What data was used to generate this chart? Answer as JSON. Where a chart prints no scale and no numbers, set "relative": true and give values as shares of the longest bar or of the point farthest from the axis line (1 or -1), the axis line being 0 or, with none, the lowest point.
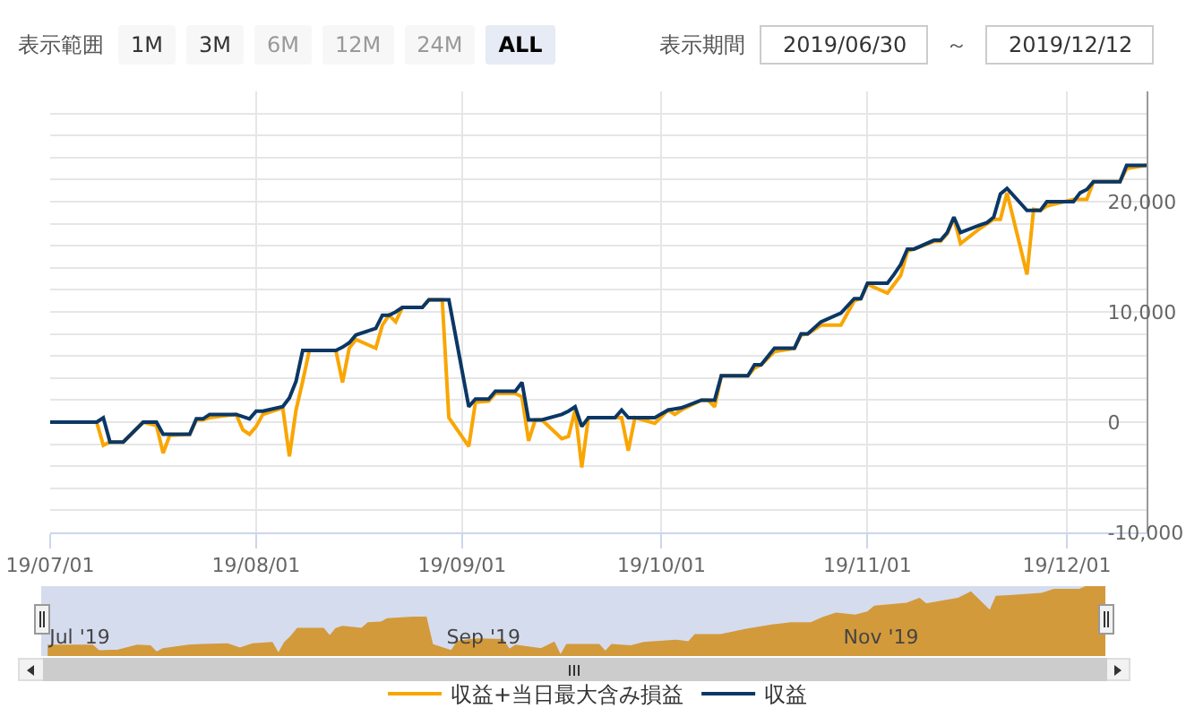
{
  "chart_data": [
    {
      "type": "line",
      "annotations": [
        "表示範囲",
        "1M",
        "3M",
        "6M",
        "12M",
        "24M",
        "ALL",
        "表示期間",
        "2019/06/30",
        "～",
        "2019/12/12"
      ],
      "x": [
        "2019-07-01",
        "2019-07-08",
        "2019-07-09",
        "2019-07-10",
        "2019-07-12",
        "2019-07-15",
        "2019-07-17",
        "2019-07-18",
        "2019-07-19",
        "2019-07-22",
        "2019-07-23",
        "2019-07-24",
        "2019-07-25",
        "2019-07-29",
        "2019-07-30",
        "2019-07-31",
        "2019-08-01",
        "2019-08-02",
        "2019-08-05",
        "2019-08-06",
        "2019-08-07",
        "2019-08-08",
        "2019-08-09",
        "2019-08-13",
        "2019-08-14",
        "2019-08-15",
        "2019-08-16",
        "2019-08-19",
        "2019-08-20",
        "2019-08-21",
        "2019-08-22",
        "2019-08-23",
        "2019-08-26",
        "2019-08-27",
        "2019-08-29",
        "2019-08-30",
        "2019-09-02",
        "2019-09-03",
        "2019-09-05",
        "2019-09-06",
        "2019-09-09",
        "2019-09-10",
        "2019-09-11",
        "2019-09-12",
        "2019-09-13",
        "2019-09-16",
        "2019-09-17",
        "2019-09-18",
        "2019-09-19",
        "2019-09-20",
        "2019-09-24",
        "2019-09-25",
        "2019-09-26",
        "2019-09-27",
        "2019-09-30",
        "2019-10-02",
        "2019-10-03",
        "2019-10-04",
        "2019-10-07",
        "2019-10-08",
        "2019-10-09",
        "2019-10-10",
        "2019-10-14",
        "2019-10-15",
        "2019-10-16",
        "2019-10-18",
        "2019-10-21",
        "2019-10-22",
        "2019-10-23",
        "2019-10-25",
        "2019-10-28",
        "2019-10-30",
        "2019-10-31",
        "2019-11-01",
        "2019-11-04",
        "2019-11-05",
        "2019-11-06",
        "2019-11-07",
        "2019-11-08",
        "2019-11-11",
        "2019-11-12",
        "2019-11-13",
        "2019-11-14",
        "2019-11-15",
        "2019-11-18",
        "2019-11-19",
        "2019-11-20",
        "2019-11-21",
        "2019-11-22",
        "2019-11-25",
        "2019-11-26",
        "2019-11-27",
        "2019-11-28",
        "2019-12-02",
        "2019-12-03",
        "2019-12-04",
        "2019-12-05",
        "2019-12-09",
        "2019-12-10",
        "2019-12-13"
      ],
      "series": [
        {
          "name": "収益+当日最大含み損益",
          "color": "#f9a602",
          "values": [
            0,
            0,
            -2100,
            -1800,
            -1800,
            0,
            -300,
            -2800,
            -1200,
            -1100,
            200,
            200,
            400,
            700,
            -700,
            -1100,
            -400,
            700,
            1300,
            -3100,
            1100,
            3700,
            6500,
            6500,
            3600,
            6700,
            7500,
            6700,
            8800,
            9700,
            9100,
            10400,
            10400,
            11100,
            11100,
            400,
            -2200,
            1800,
            1900,
            2600,
            2600,
            2300,
            -1700,
            200,
            200,
            -1500,
            -1300,
            1100,
            -4100,
            400,
            400,
            400,
            -2600,
            400,
            -100,
            1100,
            700,
            1100,
            2000,
            2000,
            1400,
            4200,
            4200,
            4900,
            5200,
            6400,
            6700,
            7900,
            8000,
            8800,
            8800,
            11000,
            11200,
            12500,
            11700,
            12500,
            13300,
            15500,
            15700,
            16400,
            16400,
            17100,
            18500,
            16200,
            17600,
            18000,
            18400,
            18400,
            20800,
            13400,
            19300,
            19200,
            19600,
            20200,
            20200,
            20200,
            21800,
            21800,
            23000,
            23300
          ]
        },
        {
          "name": "収益",
          "color": "#0b3765",
          "values": [
            0,
            0,
            400,
            -1800,
            -1800,
            0,
            0,
            -1100,
            -1100,
            -1100,
            300,
            300,
            700,
            700,
            500,
            300,
            1000,
            1000,
            1400,
            2200,
            3700,
            6500,
            6500,
            6500,
            6800,
            7200,
            7900,
            8500,
            9700,
            9700,
            10000,
            10400,
            10400,
            11100,
            11100,
            11100,
            1400,
            2100,
            2100,
            2800,
            2800,
            3600,
            200,
            200,
            200,
            700,
            1000,
            1400,
            -400,
            400,
            400,
            1100,
            400,
            400,
            400,
            1100,
            1200,
            1300,
            2000,
            2000,
            2000,
            4200,
            4200,
            5200,
            5200,
            6700,
            6700,
            8000,
            8000,
            9100,
            9900,
            11200,
            11200,
            12600,
            12600,
            13400,
            14300,
            15700,
            15700,
            16500,
            16500,
            17200,
            18600,
            17200,
            17900,
            18100,
            18600,
            20700,
            21200,
            19200,
            19200,
            19200,
            20000,
            20000,
            20800,
            21100,
            21800,
            21800,
            23300,
            23300
          ]
        }
      ],
      "xlim": [
        "2019-07-01",
        "2019-12-13"
      ],
      "xticks": [
        {
          "value": "2019-07-01",
          "label": "19/07/01"
        },
        {
          "value": "2019-08-01",
          "label": "19/08/01"
        },
        {
          "value": "2019-09-01",
          "label": "19/09/01"
        },
        {
          "value": "2019-10-01",
          "label": "19/10/01"
        },
        {
          "value": "2019-11-01",
          "label": "19/11/01"
        },
        {
          "value": "2019-12-01",
          "label": "19/12/01"
        }
      ],
      "ylim": [
        -10000,
        30000
      ],
      "yticks": [
        {
          "value": -10000,
          "label": "-10,000"
        },
        {
          "value": -8000,
          "label": null
        },
        {
          "value": -6000,
          "label": null
        },
        {
          "value": -4000,
          "label": null
        },
        {
          "value": -2000,
          "label": null
        },
        {
          "value": 0,
          "label": "0"
        },
        {
          "value": 2000,
          "label": null
        },
        {
          "value": 4000,
          "label": null
        },
        {
          "value": 6000,
          "label": null
        },
        {
          "value": 8000,
          "label": null
        },
        {
          "value": 10000,
          "label": "10,000"
        },
        {
          "value": 12000,
          "label": null
        },
        {
          "value": 14000,
          "label": null
        },
        {
          "value": 16000,
          "label": null
        },
        {
          "value": 18000,
          "label": null
        },
        {
          "value": 20000,
          "label": "20,000"
        },
        {
          "value": 22000,
          "label": null
        },
        {
          "value": 24000,
          "label": null
        },
        {
          "value": 26000,
          "label": null
        },
        {
          "value": 28000,
          "label": null
        }
      ],
      "grid": true,
      "legend": "bottom"
    },
    {
      "type": "area",
      "relative": true,
      "x": [
        "2019-07-01",
        "2019-07-08",
        "2019-07-09",
        "2019-07-12",
        "2019-07-15",
        "2019-07-17",
        "2019-07-18",
        "2019-07-19",
        "2019-07-23",
        "2019-07-25",
        "2019-07-29",
        "2019-07-31",
        "2019-08-02",
        "2019-08-05",
        "2019-08-06",
        "2019-08-07",
        "2019-08-08",
        "2019-08-09",
        "2019-08-13",
        "2019-08-14",
        "2019-08-15",
        "2019-08-16",
        "2019-08-19",
        "2019-08-20",
        "2019-08-22",
        "2019-08-23",
        "2019-08-27",
        "2019-08-29",
        "2019-08-30",
        "2019-09-02",
        "2019-09-03",
        "2019-09-06",
        "2019-09-10",
        "2019-09-11",
        "2019-09-12",
        "2019-09-16",
        "2019-09-18",
        "2019-09-19",
        "2019-09-20",
        "2019-09-25",
        "2019-09-26",
        "2019-09-27",
        "2019-09-30",
        "2019-10-02",
        "2019-10-07",
        "2019-10-09",
        "2019-10-10",
        "2019-10-14",
        "2019-10-16",
        "2019-10-18",
        "2019-10-22",
        "2019-10-25",
        "2019-10-28",
        "2019-10-30",
        "2019-11-01",
        "2019-11-04",
        "2019-11-06",
        "2019-11-07",
        "2019-11-12",
        "2019-11-14",
        "2019-11-15",
        "2019-11-20",
        "2019-11-22",
        "2019-11-25",
        "2019-11-26",
        "2019-11-28",
        "2019-12-03",
        "2019-12-05",
        "2019-12-09",
        "2019-12-10",
        "2019-12-13"
      ],
      "values": [
        0.15,
        0.15,
        0.07,
        0.08,
        0.15,
        0.14,
        0.05,
        0.1,
        0.15,
        0.16,
        0.17,
        0.11,
        0.17,
        0.19,
        0.03,
        0.19,
        0.28,
        0.39,
        0.39,
        0.28,
        0.39,
        0.42,
        0.39,
        0.47,
        0.48,
        0.53,
        0.55,
        0.55,
        0.16,
        0.07,
        0.21,
        0.24,
        0.23,
        0.09,
        0.15,
        0.1,
        0.19,
        0,
        0.16,
        0.16,
        0.06,
        0.16,
        0.14,
        0.19,
        0.22,
        0.2,
        0.3,
        0.3,
        0.34,
        0.38,
        0.44,
        0.47,
        0.47,
        0.55,
        0.61,
        0.58,
        0.63,
        0.71,
        0.75,
        0.82,
        0.74,
        0.82,
        0.91,
        0.64,
        0.85,
        0.86,
        0.89,
        0.95,
        0.95,
        0.99,
        1
      ],
      "color": "#d39a3b",
      "xlim": [
        "2019-06-30",
        "2019-12-13"
      ],
      "xticks": [
        {
          "value": "2019-07-06",
          "label": "Jul '19"
        },
        {
          "value": "2019-09-07",
          "label": "Sep '19"
        },
        {
          "value": "2019-11-08",
          "label": "Nov '19"
        }
      ],
      "tick_labels": "x"
    }
  ]
}
